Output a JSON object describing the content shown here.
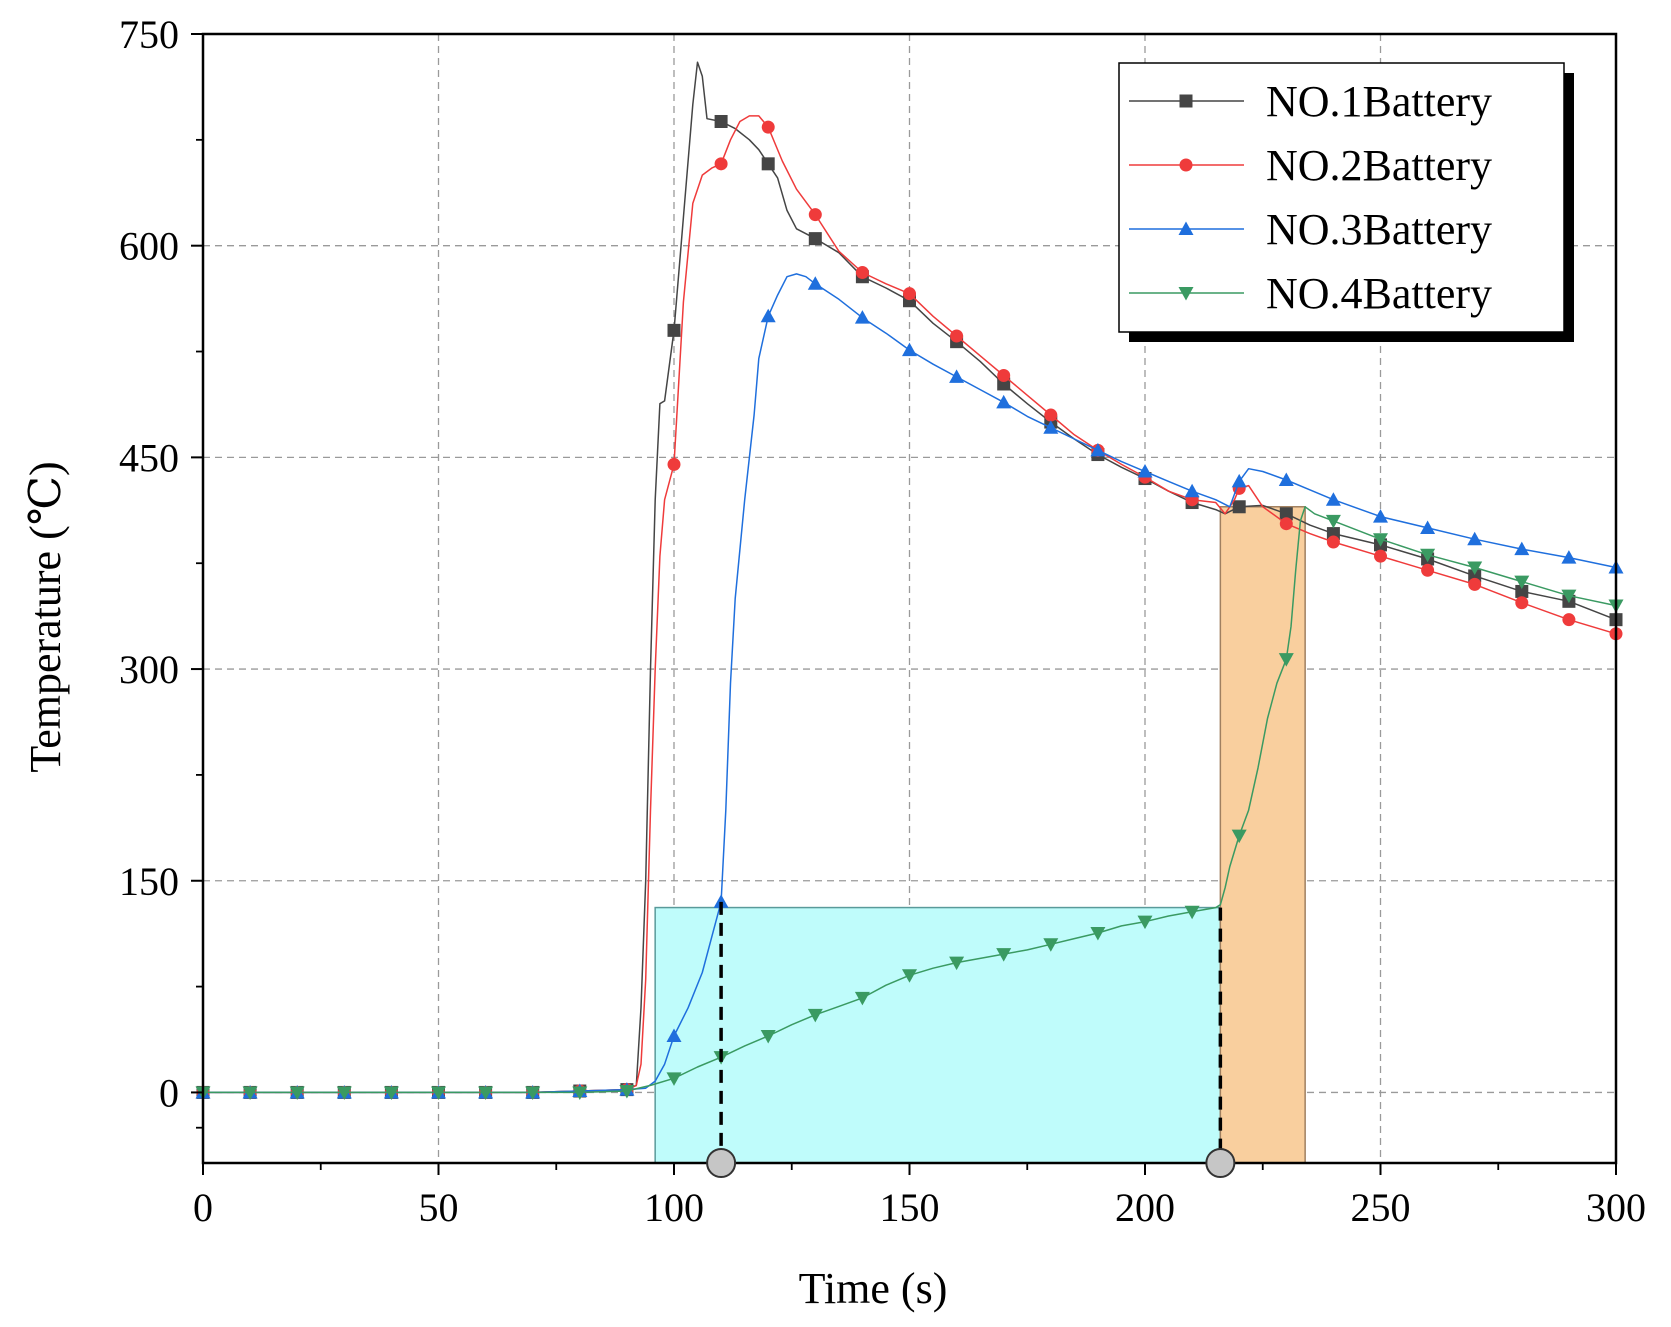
{
  "chart_data": {
    "type": "line",
    "xlabel": "Time (s)",
    "ylabel": "Temperature (℃)",
    "xlim": [
      0,
      300
    ],
    "ylim": [
      -50,
      750
    ],
    "xticks": [
      0,
      50,
      100,
      150,
      200,
      250,
      300
    ],
    "yticks": [
      0,
      150,
      300,
      450,
      600,
      750
    ],
    "grid": true,
    "legend_position": "top-right",
    "series": [
      {
        "name": "NO.1Battery",
        "color": "#454545",
        "marker": "square",
        "points": [
          [
            0,
            0
          ],
          [
            10,
            0
          ],
          [
            20,
            0
          ],
          [
            30,
            0
          ],
          [
            40,
            0
          ],
          [
            50,
            0
          ],
          [
            60,
            0
          ],
          [
            70,
            0
          ],
          [
            80,
            1
          ],
          [
            90,
            2
          ],
          [
            92,
            5
          ],
          [
            93,
            60
          ],
          [
            94,
            150
          ],
          [
            95,
            300
          ],
          [
            96,
            420
          ],
          [
            97,
            488
          ],
          [
            98,
            490
          ],
          [
            100,
            540
          ],
          [
            102,
            620
          ],
          [
            104,
            700
          ],
          [
            105,
            730
          ],
          [
            106,
            720
          ],
          [
            107,
            690
          ],
          [
            110,
            688
          ],
          [
            113,
            683
          ],
          [
            116,
            675
          ],
          [
            118,
            668
          ],
          [
            120,
            658
          ],
          [
            122,
            648
          ],
          [
            124,
            625
          ],
          [
            126,
            612
          ],
          [
            130,
            605
          ],
          [
            135,
            595
          ],
          [
            140,
            578
          ],
          [
            145,
            570
          ],
          [
            150,
            561
          ],
          [
            155,
            545
          ],
          [
            160,
            532
          ],
          [
            165,
            518
          ],
          [
            170,
            502
          ],
          [
            175,
            488
          ],
          [
            180,
            475
          ],
          [
            185,
            463
          ],
          [
            190,
            452
          ],
          [
            195,
            443
          ],
          [
            200,
            435
          ],
          [
            205,
            426
          ],
          [
            210,
            418
          ],
          [
            215,
            413
          ],
          [
            217,
            410
          ],
          [
            220,
            415
          ],
          [
            225,
            416
          ],
          [
            230,
            410
          ],
          [
            235,
            402
          ],
          [
            240,
            396
          ],
          [
            250,
            388
          ],
          [
            260,
            378
          ],
          [
            270,
            366
          ],
          [
            280,
            355
          ],
          [
            290,
            348
          ],
          [
            300,
            335
          ]
        ],
        "markers_x": [
          0,
          10,
          20,
          30,
          40,
          50,
          60,
          70,
          80,
          90,
          100,
          110,
          120,
          130,
          140,
          150,
          160,
          170,
          180,
          190,
          200,
          210,
          220,
          230,
          240,
          250,
          260,
          270,
          280,
          290,
          300
        ]
      },
      {
        "name": "NO.2Battery",
        "color": "#ef3b3b",
        "marker": "circle",
        "points": [
          [
            0,
            0
          ],
          [
            10,
            0
          ],
          [
            20,
            0
          ],
          [
            30,
            0
          ],
          [
            40,
            0
          ],
          [
            50,
            0
          ],
          [
            60,
            0
          ],
          [
            70,
            0
          ],
          [
            80,
            1
          ],
          [
            90,
            2
          ],
          [
            92,
            5
          ],
          [
            93,
            20
          ],
          [
            94,
            80
          ],
          [
            95,
            200
          ],
          [
            96,
            300
          ],
          [
            97,
            380
          ],
          [
            98,
            420
          ],
          [
            100,
            445
          ],
          [
            102,
            560
          ],
          [
            104,
            630
          ],
          [
            106,
            650
          ],
          [
            108,
            655
          ],
          [
            110,
            658
          ],
          [
            112,
            675
          ],
          [
            114,
            688
          ],
          [
            116,
            692
          ],
          [
            118,
            692
          ],
          [
            120,
            684
          ],
          [
            123,
            660
          ],
          [
            126,
            640
          ],
          [
            130,
            622
          ],
          [
            135,
            596
          ],
          [
            140,
            581
          ],
          [
            145,
            573
          ],
          [
            150,
            566
          ],
          [
            155,
            550
          ],
          [
            160,
            536
          ],
          [
            165,
            522
          ],
          [
            170,
            508
          ],
          [
            175,
            494
          ],
          [
            180,
            480
          ],
          [
            185,
            466
          ],
          [
            190,
            455
          ],
          [
            195,
            445
          ],
          [
            200,
            436
          ],
          [
            205,
            426
          ],
          [
            210,
            420
          ],
          [
            215,
            418
          ],
          [
            217,
            410
          ],
          [
            219,
            420
          ],
          [
            220,
            428
          ],
          [
            222,
            430
          ],
          [
            225,
            415
          ],
          [
            230,
            403
          ],
          [
            235,
            396
          ],
          [
            240,
            390
          ],
          [
            250,
            380
          ],
          [
            260,
            370
          ],
          [
            270,
            360
          ],
          [
            280,
            347
          ],
          [
            290,
            335
          ],
          [
            300,
            325
          ]
        ],
        "markers_x": [
          0,
          10,
          20,
          30,
          40,
          50,
          60,
          70,
          80,
          90,
          100,
          110,
          120,
          130,
          140,
          150,
          160,
          170,
          180,
          190,
          200,
          210,
          220,
          230,
          240,
          250,
          260,
          270,
          280,
          290,
          300
        ]
      },
      {
        "name": "NO.3Battery",
        "color": "#1f6fdd",
        "marker": "triangle-up",
        "points": [
          [
            0,
            0
          ],
          [
            10,
            0
          ],
          [
            20,
            0
          ],
          [
            30,
            0
          ],
          [
            40,
            0
          ],
          [
            50,
            0
          ],
          [
            60,
            0
          ],
          [
            70,
            0
          ],
          [
            80,
            1
          ],
          [
            90,
            2
          ],
          [
            94,
            3
          ],
          [
            96,
            8
          ],
          [
            98,
            20
          ],
          [
            100,
            40
          ],
          [
            103,
            60
          ],
          [
            106,
            85
          ],
          [
            108,
            110
          ],
          [
            110,
            135
          ],
          [
            111,
            200
          ],
          [
            112,
            290
          ],
          [
            113,
            350
          ],
          [
            115,
            420
          ],
          [
            117,
            480
          ],
          [
            118,
            520
          ],
          [
            120,
            550
          ],
          [
            122,
            565
          ],
          [
            124,
            578
          ],
          [
            126,
            580
          ],
          [
            128,
            578
          ],
          [
            130,
            573
          ],
          [
            135,
            562
          ],
          [
            140,
            549
          ],
          [
            145,
            538
          ],
          [
            150,
            526
          ],
          [
            155,
            516
          ],
          [
            160,
            507
          ],
          [
            165,
            498
          ],
          [
            170,
            489
          ],
          [
            175,
            479
          ],
          [
            180,
            471
          ],
          [
            185,
            463
          ],
          [
            190,
            455
          ],
          [
            195,
            447
          ],
          [
            200,
            440
          ],
          [
            205,
            433
          ],
          [
            210,
            426
          ],
          [
            215,
            420
          ],
          [
            218,
            415
          ],
          [
            220,
            433
          ],
          [
            222,
            442
          ],
          [
            225,
            440
          ],
          [
            230,
            434
          ],
          [
            235,
            427
          ],
          [
            240,
            420
          ],
          [
            250,
            408
          ],
          [
            260,
            400
          ],
          [
            270,
            392
          ],
          [
            280,
            385
          ],
          [
            290,
            379
          ],
          [
            300,
            372
          ]
        ],
        "markers_x": [
          0,
          10,
          20,
          30,
          40,
          50,
          60,
          70,
          80,
          90,
          100,
          110,
          120,
          130,
          140,
          150,
          160,
          170,
          180,
          190,
          200,
          210,
          220,
          230,
          240,
          250,
          260,
          270,
          280,
          290,
          300
        ]
      },
      {
        "name": "NO.4Battery",
        "color": "#3a9a62",
        "marker": "triangle-down",
        "points": [
          [
            0,
            0
          ],
          [
            10,
            0
          ],
          [
            20,
            0
          ],
          [
            30,
            0
          ],
          [
            40,
            0
          ],
          [
            50,
            0
          ],
          [
            60,
            0
          ],
          [
            70,
            0
          ],
          [
            80,
            0
          ],
          [
            90,
            1
          ],
          [
            95,
            5
          ],
          [
            100,
            10
          ],
          [
            105,
            18
          ],
          [
            110,
            25
          ],
          [
            115,
            33
          ],
          [
            120,
            40
          ],
          [
            125,
            48
          ],
          [
            130,
            55
          ],
          [
            135,
            61
          ],
          [
            140,
            67
          ],
          [
            145,
            76
          ],
          [
            150,
            83
          ],
          [
            155,
            88
          ],
          [
            160,
            92
          ],
          [
            165,
            95
          ],
          [
            170,
            98
          ],
          [
            175,
            101
          ],
          [
            180,
            105
          ],
          [
            185,
            109
          ],
          [
            190,
            113
          ],
          [
            195,
            118
          ],
          [
            200,
            121
          ],
          [
            205,
            125
          ],
          [
            210,
            128
          ],
          [
            215,
            131
          ],
          [
            216,
            133
          ],
          [
            217,
            145
          ],
          [
            218,
            160
          ],
          [
            220,
            182
          ],
          [
            222,
            200
          ],
          [
            224,
            230
          ],
          [
            226,
            265
          ],
          [
            228,
            290
          ],
          [
            230,
            307
          ],
          [
            231,
            330
          ],
          [
            232,
            370
          ],
          [
            233,
            405
          ],
          [
            234,
            415
          ],
          [
            236,
            410
          ],
          [
            240,
            405
          ],
          [
            250,
            392
          ],
          [
            260,
            381
          ],
          [
            270,
            372
          ],
          [
            280,
            362
          ],
          [
            290,
            352
          ],
          [
            300,
            345
          ]
        ],
        "markers_x": [
          0,
          10,
          20,
          30,
          40,
          50,
          60,
          70,
          80,
          90,
          100,
          110,
          120,
          130,
          140,
          150,
          160,
          170,
          180,
          190,
          200,
          210,
          220,
          230,
          240,
          250,
          260,
          270,
          280,
          290,
          300
        ]
      }
    ],
    "shaded_regions": [
      {
        "name": "cyan-stage",
        "x0": 96,
        "x1": 216,
        "y0": -50,
        "y1": 131,
        "color": "#bffcfb",
        "stroke": "#5a9a9a"
      },
      {
        "name": "orange-stage",
        "x0": 216,
        "x1": 234,
        "y0": -50,
        "y1": 415,
        "color": "#f9cf9e",
        "stroke": "#a08060"
      }
    ],
    "reference_lines": [
      {
        "name": "no3-trigger-line",
        "x": 110,
        "y_top": 135
      },
      {
        "name": "no4-trigger-line",
        "x": 216,
        "y_top": 131
      }
    ],
    "axis_dots": [
      110,
      216
    ]
  }
}
